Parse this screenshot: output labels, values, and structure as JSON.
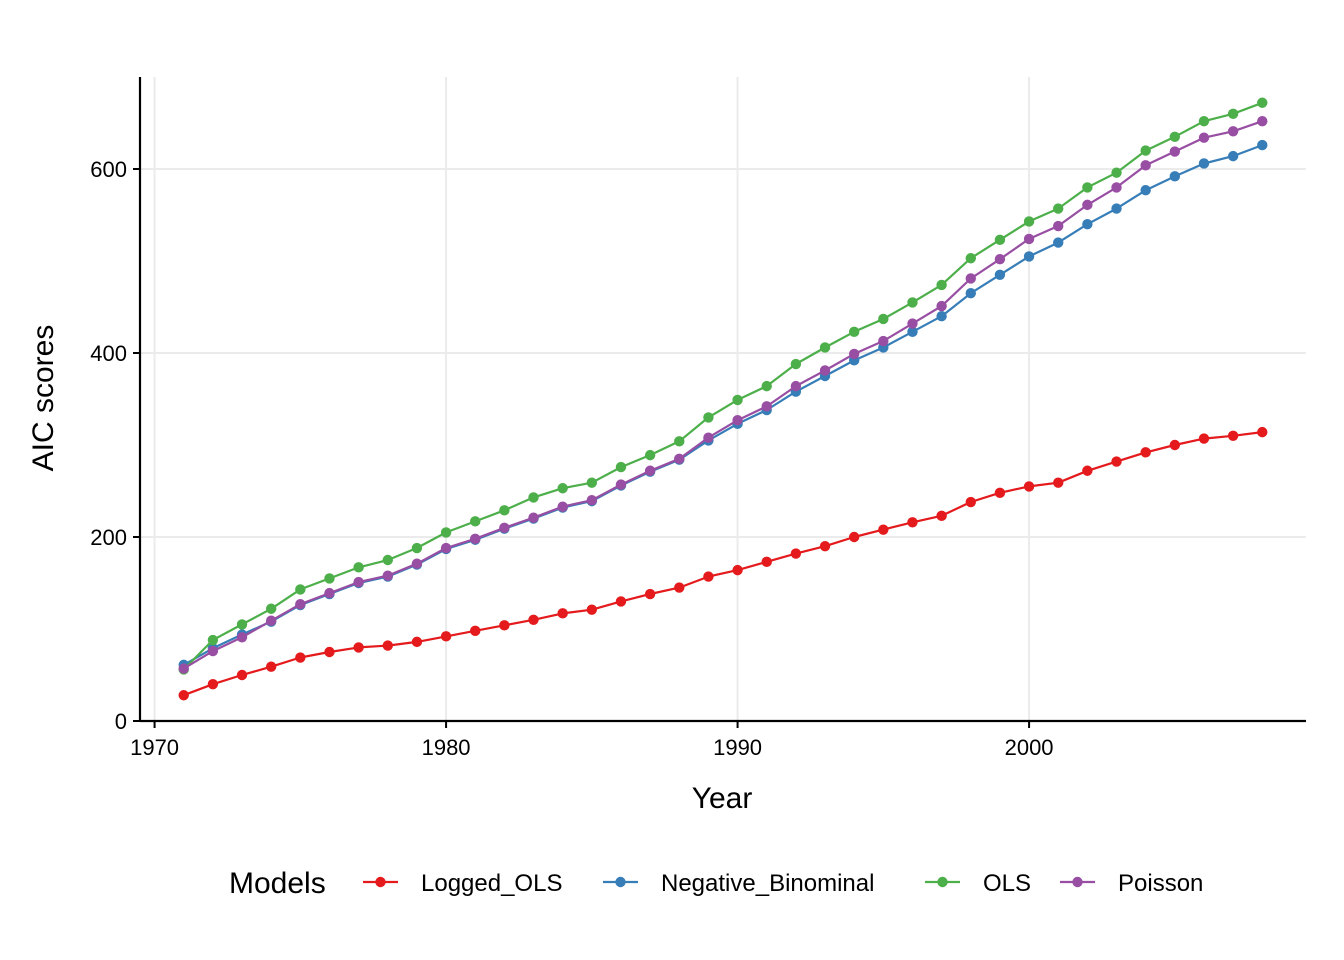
{
  "chart_data": {
    "type": "line",
    "xlabel": "Year",
    "ylabel": "AIC scores",
    "xlim": [
      1969.5,
      2009.5
    ],
    "ylim": [
      0,
      700
    ],
    "x_ticks": [
      1970,
      1980,
      1990,
      2000
    ],
    "y_ticks": [
      0,
      200,
      400,
      600
    ],
    "grid": true,
    "legend_title": "Models",
    "legend_position": "bottom",
    "x": [
      1971,
      1972,
      1973,
      1974,
      1975,
      1976,
      1977,
      1978,
      1979,
      1980,
      1981,
      1982,
      1983,
      1984,
      1985,
      1986,
      1987,
      1988,
      1989,
      1990,
      1991,
      1992,
      1993,
      1994,
      1995,
      1996,
      1997,
      1998,
      1999,
      2000,
      2001,
      2002,
      2003,
      2004,
      2005,
      2006,
      2007,
      2008
    ],
    "series": [
      {
        "name": "Logged_OLS",
        "color": "#e41a1c",
        "values": [
          28,
          40,
          50,
          59,
          69,
          75,
          80,
          82,
          86,
          92,
          98,
          104,
          110,
          117,
          121,
          130,
          138,
          145,
          157,
          164,
          173,
          182,
          190,
          200,
          208,
          216,
          223,
          238,
          248,
          255,
          259,
          272,
          282,
          292,
          300,
          307,
          310,
          314
        ]
      },
      {
        "name": "Negative_Binominal",
        "color": "#377eb8",
        "values": [
          61,
          79,
          94,
          108,
          126,
          138,
          150,
          157,
          170,
          187,
          197,
          209,
          220,
          232,
          239,
          256,
          271,
          284,
          305,
          323,
          338,
          358,
          375,
          392,
          406,
          423,
          440,
          465,
          485,
          505,
          520,
          540,
          557,
          577,
          592,
          606,
          614,
          626
        ]
      },
      {
        "name": "OLS",
        "color": "#4daf4a",
        "values": [
          56,
          88,
          105,
          122,
          143,
          155,
          167,
          175,
          188,
          205,
          217,
          229,
          243,
          253,
          259,
          276,
          289,
          304,
          330,
          349,
          364,
          388,
          406,
          423,
          437,
          455,
          474,
          503,
          523,
          543,
          557,
          580,
          596,
          620,
          635,
          652,
          660,
          672
        ]
      },
      {
        "name": "Poisson",
        "color": "#984ea3",
        "values": [
          57,
          76,
          91,
          109,
          127,
          139,
          151,
          158,
          171,
          188,
          198,
          210,
          221,
          233,
          240,
          257,
          272,
          285,
          308,
          327,
          342,
          364,
          381,
          399,
          413,
          432,
          451,
          481,
          502,
          524,
          538,
          561,
          580,
          604,
          619,
          634,
          641,
          652
        ]
      }
    ]
  }
}
